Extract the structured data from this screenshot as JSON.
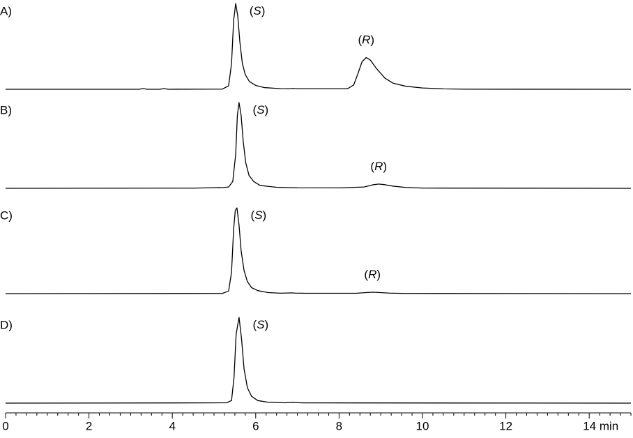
{
  "chart_data": [
    {
      "type": "line",
      "label": "A)",
      "color": "#000000",
      "xlim": [
        0,
        15
      ],
      "ylim": [
        0,
        100
      ],
      "annotations": [
        "(S)",
        "(R)"
      ],
      "x": [
        0,
        3.2,
        3.3,
        3.4,
        3.7,
        3.8,
        3.9,
        5.2,
        5.35,
        5.42,
        5.47,
        5.52,
        5.57,
        5.62,
        5.68,
        5.75,
        5.85,
        6.0,
        6.2,
        6.6,
        6.8,
        6.9,
        7.0,
        8.2,
        8.35,
        8.45,
        8.55,
        8.65,
        8.75,
        8.9,
        9.1,
        9.3,
        9.6,
        10.0,
        10.5,
        11,
        15
      ],
      "values": [
        0,
        0,
        0.8,
        0,
        0,
        0.8,
        0,
        0.2,
        4,
        30,
        80,
        100,
        85,
        55,
        30,
        17,
        9,
        4.5,
        2,
        0.7,
        0.6,
        0.9,
        0.6,
        0.6,
        5,
        18,
        32,
        37,
        34,
        24,
        13,
        7,
        3.5,
        1.5,
        0.5,
        0.1,
        0
      ]
    },
    {
      "type": "line",
      "label": "B)",
      "color": "#000000",
      "xlim": [
        0,
        15
      ],
      "ylim": [
        0,
        100
      ],
      "annotations": [
        "(S)",
        "(R)"
      ],
      "x": [
        0,
        4.5,
        5.0,
        5.1,
        5.2,
        5.35,
        5.45,
        5.52,
        5.56,
        5.6,
        5.65,
        5.7,
        5.76,
        5.84,
        5.95,
        6.1,
        6.3,
        6.5,
        7.0,
        8.0,
        8.6,
        8.8,
        8.95,
        9.1,
        9.3,
        9.6,
        10.0,
        15
      ],
      "values": [
        0,
        0.2,
        0.7,
        0.9,
        0.8,
        1.5,
        8,
        40,
        85,
        100,
        85,
        55,
        30,
        15,
        8,
        3.5,
        2.2,
        1.2,
        0.6,
        0.5,
        1.5,
        4,
        5,
        4.2,
        2.5,
        1,
        0.3,
        0
      ]
    },
    {
      "type": "line",
      "label": "C)",
      "color": "#000000",
      "xlim": [
        0,
        15
      ],
      "ylim": [
        0,
        100
      ],
      "annotations": [
        "(S)",
        "(R)"
      ],
      "x": [
        0,
        5.2,
        5.35,
        5.42,
        5.47,
        5.51,
        5.55,
        5.6,
        5.65,
        5.72,
        5.8,
        5.9,
        6.05,
        6.3,
        6.6,
        6.75,
        6.85,
        6.95,
        7.2,
        8.4,
        8.65,
        8.8,
        8.95,
        9.2,
        9.6,
        15
      ],
      "values": [
        0,
        0.2,
        3,
        25,
        75,
        97,
        100,
        80,
        50,
        27,
        14,
        7,
        3.5,
        1.2,
        0.5,
        0.7,
        0.9,
        0.6,
        0.4,
        0.4,
        1.2,
        1.6,
        1.3,
        0.6,
        0.2,
        0
      ]
    },
    {
      "type": "line",
      "label": "D)",
      "color": "#000000",
      "xlim": [
        0,
        15
      ],
      "ylim": [
        0,
        100
      ],
      "annotations": [
        "(S)"
      ],
      "x": [
        0,
        4.8,
        5.3,
        5.42,
        5.48,
        5.53,
        5.6,
        5.66,
        5.72,
        5.8,
        5.9,
        6.05,
        6.3,
        6.7,
        6.9,
        7.1,
        15
      ],
      "values": [
        0,
        0.3,
        0.4,
        3,
        30,
        80,
        100,
        75,
        40,
        18,
        8,
        3,
        1,
        0.4,
        0.8,
        0.3,
        0
      ],
      "xticks": [
        0,
        2,
        4,
        6,
        8,
        10,
        12,
        {
          "value": 14,
          "label": "14 min"
        }
      ],
      "xminorticks": [
        0.25,
        0.5,
        0.75,
        1,
        1.25,
        1.5,
        1.75,
        2.25,
        2.5,
        2.75,
        3,
        3.25,
        3.5,
        3.75,
        4.25,
        4.5,
        4.75,
        5,
        5.25,
        5.5,
        5.75,
        6.25,
        6.5,
        6.75,
        7,
        7.25,
        7.5,
        7.75,
        8.25,
        8.5,
        8.75,
        9,
        9.25,
        9.5,
        9.75,
        10.25,
        10.5,
        10.75,
        11,
        11.25,
        11.5,
        11.75,
        12.25,
        12.5,
        12.75,
        13,
        13.25,
        13.5,
        13.75,
        14.25,
        14.5,
        14.75,
        15
      ]
    }
  ]
}
